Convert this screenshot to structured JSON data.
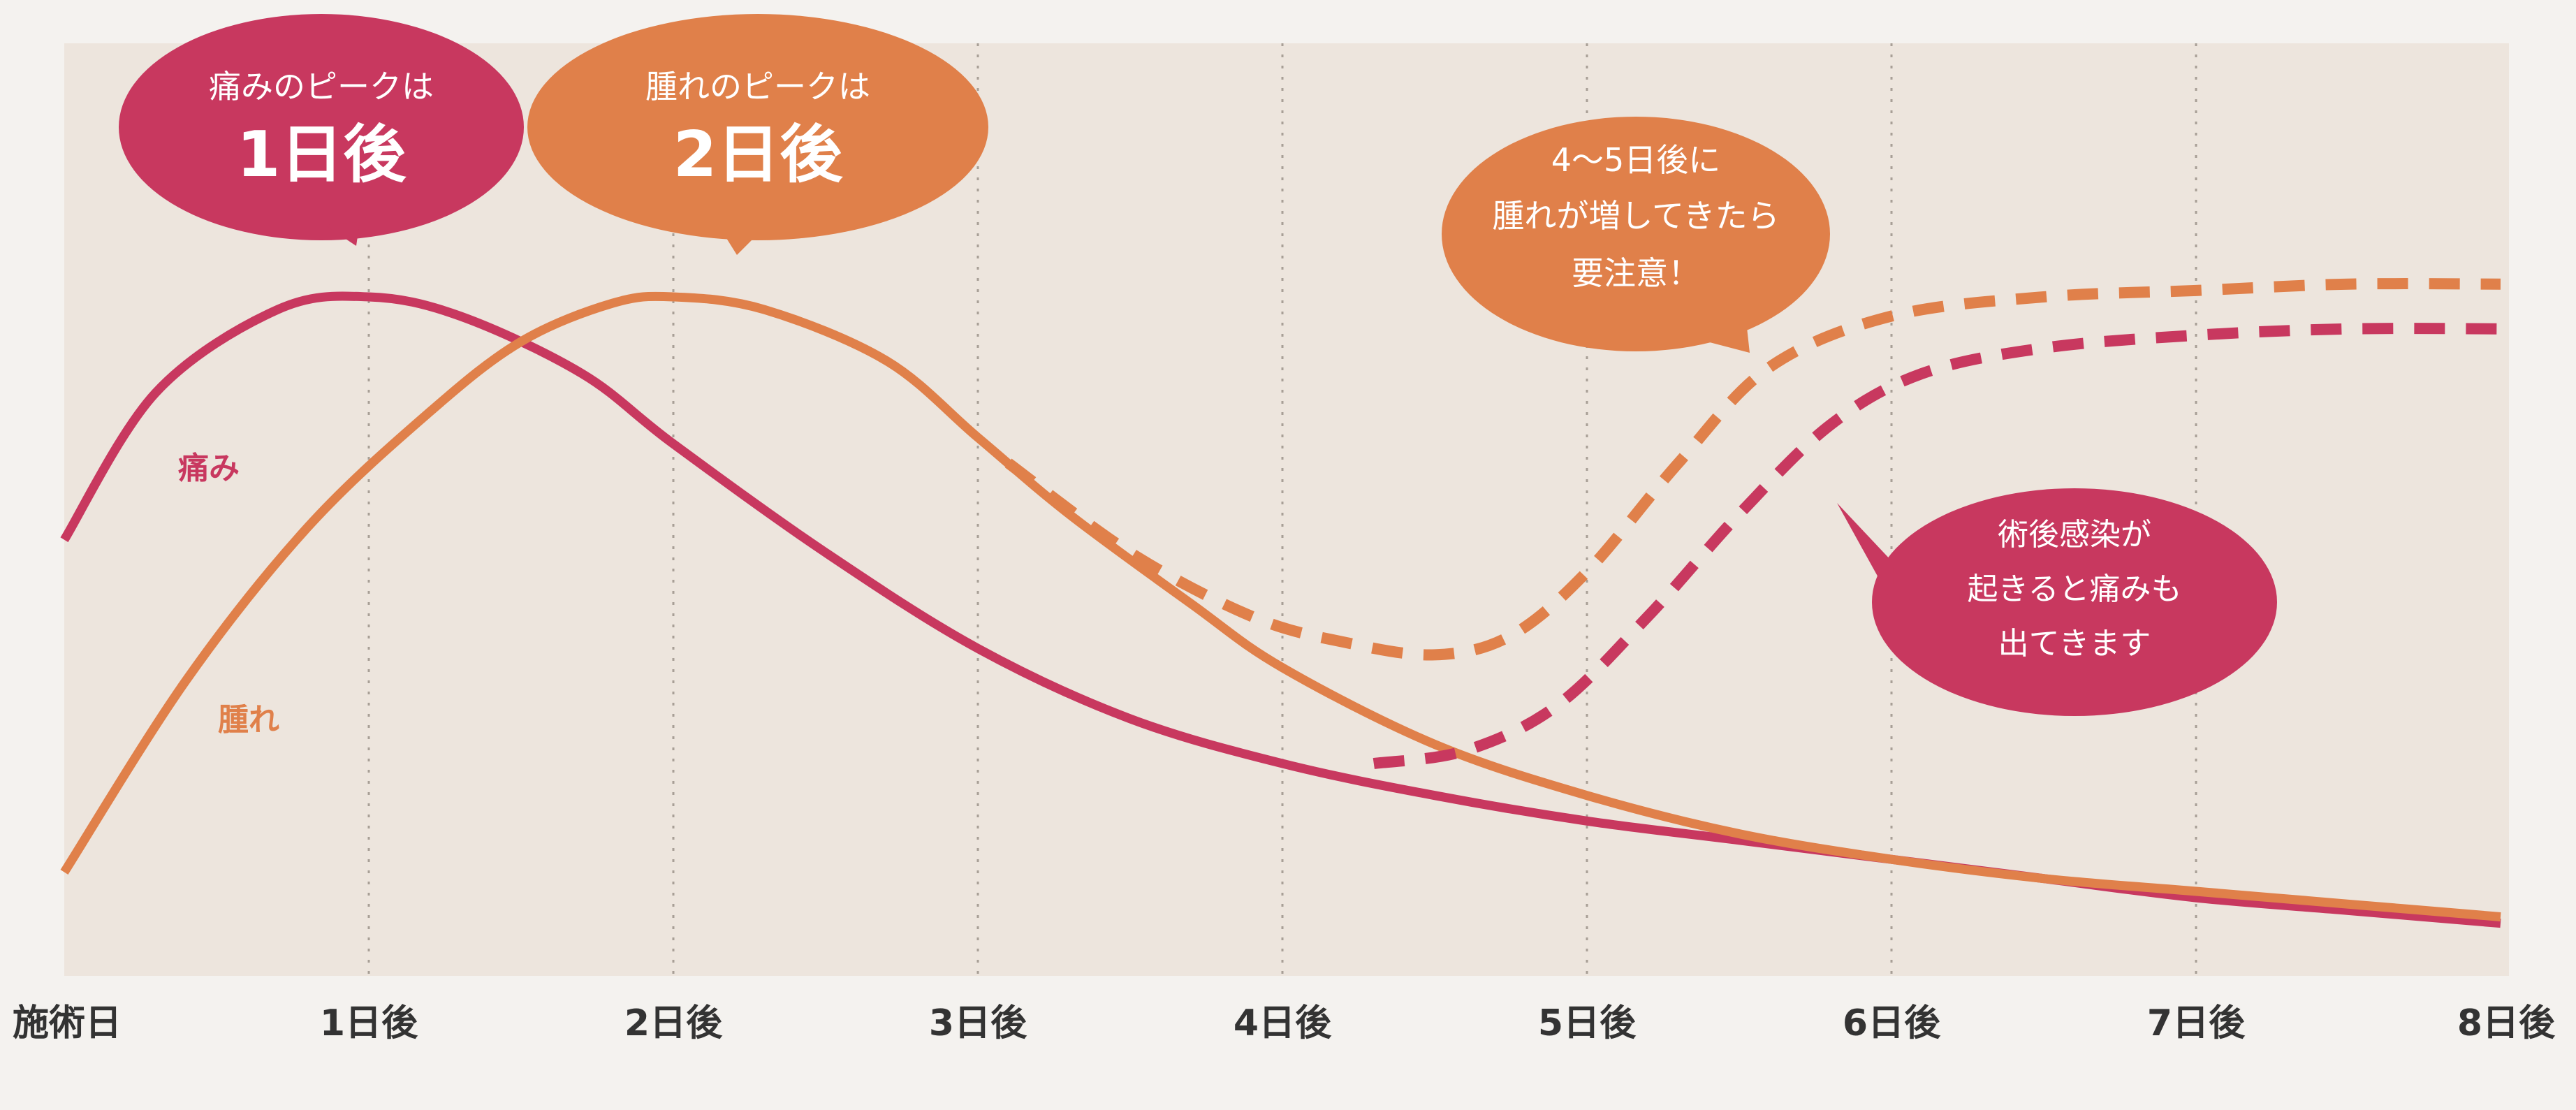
{
  "chart_data": {
    "type": "line",
    "x_ticks": [
      "施術日",
      "1日後",
      "2日後",
      "3日後",
      "4日後",
      "5日後",
      "6日後",
      "7日後",
      "8日後"
    ],
    "xlim": [
      0,
      8
    ],
    "ylim": [
      0,
      1
    ],
    "grid": "vertical dotted lines at each day",
    "series": [
      {
        "name": "痛み",
        "color": "#c8385f",
        "style": "solid",
        "points": [
          [
            0,
            0.62
          ],
          [
            0.3,
            0.85
          ],
          [
            0.7,
            0.98
          ],
          [
            1,
            1.0
          ],
          [
            1.3,
            0.97
          ],
          [
            1.7,
            0.88
          ],
          [
            2,
            0.77
          ],
          [
            2.5,
            0.6
          ],
          [
            3,
            0.45
          ],
          [
            3.5,
            0.34
          ],
          [
            4,
            0.27
          ],
          [
            4.5,
            0.22
          ],
          [
            5,
            0.18
          ],
          [
            5.5,
            0.15
          ],
          [
            6,
            0.12
          ],
          [
            6.5,
            0.09
          ],
          [
            7,
            0.06
          ],
          [
            7.5,
            0.04
          ],
          [
            8,
            0.02
          ]
        ]
      },
      {
        "name": "腫れ",
        "color": "#e0804a",
        "style": "solid",
        "points": [
          [
            0,
            0.1
          ],
          [
            0.4,
            0.4
          ],
          [
            0.8,
            0.64
          ],
          [
            1.2,
            0.82
          ],
          [
            1.5,
            0.93
          ],
          [
            1.8,
            0.99
          ],
          [
            2,
            1.0
          ],
          [
            2.3,
            0.98
          ],
          [
            2.7,
            0.9
          ],
          [
            3,
            0.78
          ],
          [
            3.3,
            0.66
          ],
          [
            3.7,
            0.52
          ],
          [
            4,
            0.42
          ],
          [
            4.5,
            0.3
          ],
          [
            5,
            0.22
          ],
          [
            5.5,
            0.16
          ],
          [
            6,
            0.12
          ],
          [
            6.5,
            0.09
          ],
          [
            7,
            0.07
          ],
          [
            7.5,
            0.05
          ],
          [
            8,
            0.03
          ]
        ]
      },
      {
        "name": "腫れ",
        "color": "#e0804a",
        "style": "dashed",
        "points": [
          [
            3.1,
            0.74
          ],
          [
            3.5,
            0.6
          ],
          [
            3.9,
            0.5
          ],
          [
            4.2,
            0.46
          ],
          [
            4.5,
            0.44
          ],
          [
            4.75,
            0.47
          ],
          [
            5,
            0.57
          ],
          [
            5.3,
            0.74
          ],
          [
            5.6,
            0.89
          ],
          [
            6,
            0.97
          ],
          [
            6.5,
            1.0
          ],
          [
            7,
            1.01
          ],
          [
            7.5,
            1.02
          ],
          [
            8,
            1.02
          ]
        ]
      },
      {
        "name": "痛み",
        "color": "#c8385f",
        "style": "dashed",
        "points": [
          [
            4.3,
            0.27
          ],
          [
            4.6,
            0.29
          ],
          [
            4.9,
            0.36
          ],
          [
            5.2,
            0.5
          ],
          [
            5.5,
            0.66
          ],
          [
            5.8,
            0.8
          ],
          [
            6.1,
            0.88
          ],
          [
            6.5,
            0.92
          ],
          [
            7,
            0.94
          ],
          [
            7.5,
            0.95
          ],
          [
            8,
            0.95
          ]
        ]
      }
    ],
    "annotations": [
      {
        "id": "pain-peak",
        "lines": [
          "痛みのピークは",
          "1日後"
        ],
        "color": "#c8385f"
      },
      {
        "id": "swelling-peak",
        "lines": [
          "腫れのピークは",
          "2日後"
        ],
        "color": "#e0804a"
      },
      {
        "id": "swelling-warning",
        "lines": [
          "4〜5日後に",
          "腫れが増してきたら",
          "要注意！"
        ],
        "color": "#e0804a"
      },
      {
        "id": "infection-note",
        "lines": [
          "術後感染が",
          "起きると痛みも",
          "出てきます"
        ],
        "color": "#c8385f"
      }
    ],
    "series_labels": [
      {
        "text": "痛み",
        "color": "#c8385f"
      },
      {
        "text": "腫れ",
        "color": "#e0804a"
      }
    ]
  }
}
